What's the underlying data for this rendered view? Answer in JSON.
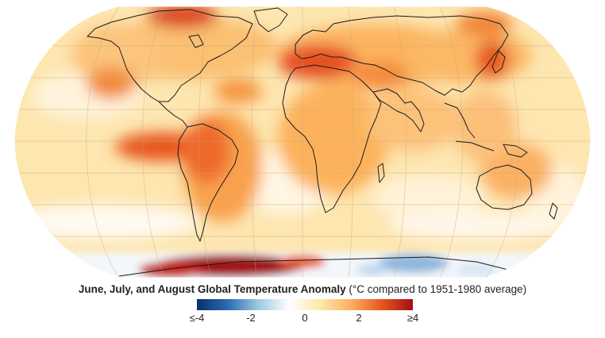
{
  "map": {
    "projection": "robinson",
    "grid": true,
    "outline_color": "#1a1a1a",
    "ocean_base_color": "#fde3a7"
  },
  "caption": {
    "title_bold": "June, July, and August Global Temperature Anomaly",
    "title_normal": " (°C compared to 1951-1980 average)"
  },
  "legend": {
    "min": -4,
    "max": 4,
    "ticks": [
      {
        "value": -4,
        "label": "≤-4"
      },
      {
        "value": -2,
        "label": "-2"
      },
      {
        "value": 0,
        "label": "0"
      },
      {
        "value": 2,
        "label": "2"
      },
      {
        "value": 4,
        "label": "≥4"
      }
    ],
    "colors": [
      "#08306b",
      "#2b6cb0",
      "#9ecae1",
      "#ffffff",
      "#fde9a9",
      "#fdae61",
      "#e8551f",
      "#a50f15"
    ]
  }
}
